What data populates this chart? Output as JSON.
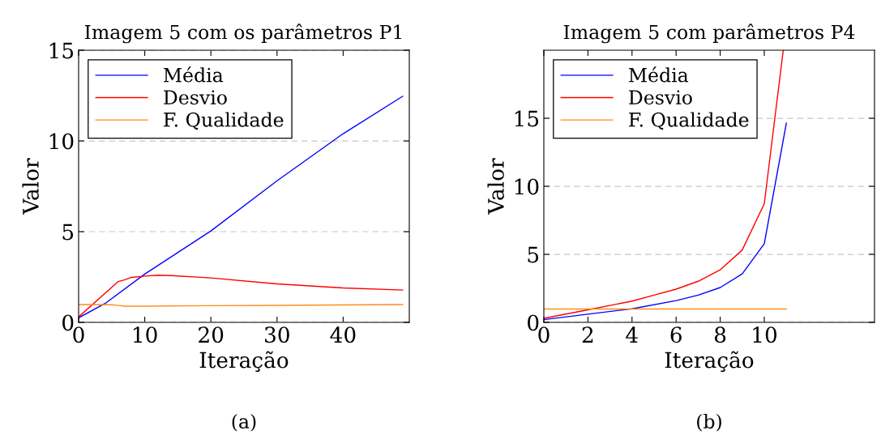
{
  "chart_data": [
    {
      "type": "line",
      "title": "Imagem 5 com os parâmetros P1",
      "xlabel": "Iteração",
      "ylabel": "Valor",
      "annotations": [
        "(a)"
      ],
      "xlim": [
        0,
        50
      ],
      "xticks": [
        0,
        10,
        20,
        30,
        40
      ],
      "ylim": [
        0,
        15
      ],
      "yticks": [
        0,
        5,
        10,
        15
      ],
      "grid": "y",
      "legend": "top left",
      "line_style": "solid",
      "marker": "none",
      "series": [
        {
          "name": "Média",
          "color": "#0000ff",
          "x": [
            0,
            4,
            10,
            20,
            30,
            40,
            49
          ],
          "values": [
            0.25,
            1.04,
            2.66,
            5.04,
            7.8,
            10.4,
            12.46
          ]
        },
        {
          "name": "Desvio",
          "color": "#ff0000",
          "x": [
            0,
            6,
            7,
            8,
            10,
            12,
            14,
            20,
            30,
            40,
            49
          ],
          "values": [
            0.3,
            2.25,
            2.35,
            2.48,
            2.55,
            2.6,
            2.58,
            2.45,
            2.12,
            1.9,
            1.78
          ]
        },
        {
          "name": "F. Qualidade",
          "color": "#ff8c1a",
          "x": [
            0,
            5,
            6,
            7,
            10,
            20,
            30,
            49
          ],
          "values": [
            0.98,
            0.97,
            0.93,
            0.89,
            0.89,
            0.92,
            0.94,
            0.98
          ]
        }
      ]
    },
    {
      "type": "line",
      "title": "Imagem 5 com parâmetros P4",
      "xlabel": "Iteração",
      "ylabel": "Valor",
      "annotations": [
        "(b)"
      ],
      "xlim": [
        0,
        15
      ],
      "xticks": [
        0,
        2,
        4,
        6,
        8,
        10
      ],
      "ylim": [
        0,
        20
      ],
      "yticks": [
        0,
        5,
        10,
        15
      ],
      "grid": "y",
      "legend": "top left",
      "line_style": "solid",
      "marker": "none",
      "series": [
        {
          "name": "Média",
          "color": "#0000ff",
          "x": [
            0,
            2,
            4,
            6,
            7,
            8,
            9,
            10,
            11
          ],
          "values": [
            0.2,
            0.6,
            1.0,
            1.6,
            2.0,
            2.56,
            3.56,
            5.78,
            14.64
          ]
        },
        {
          "name": "Desvio",
          "color": "#ff0000",
          "x": [
            0,
            2,
            4,
            5,
            6,
            7,
            8,
            9,
            10,
            10.86
          ],
          "values": [
            0.3,
            0.92,
            1.56,
            2.0,
            2.44,
            3.02,
            3.86,
            5.32,
            8.72,
            20
          ]
        },
        {
          "name": "F. Qualidade",
          "color": "#ff8c1a",
          "x": [
            0,
            11
          ],
          "values": [
            0.98,
            0.98
          ]
        }
      ]
    }
  ]
}
